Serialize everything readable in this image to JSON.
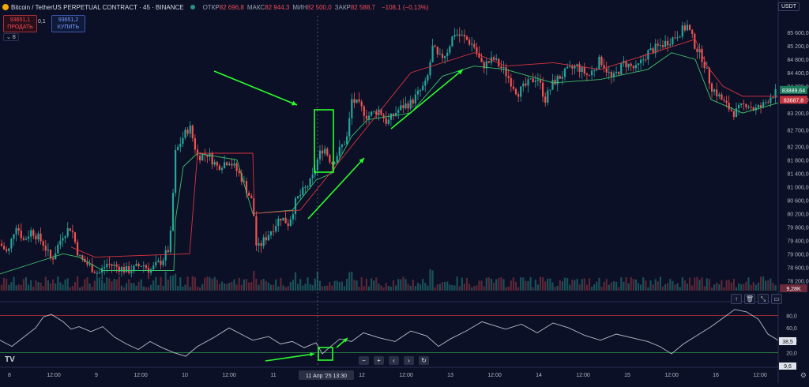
{
  "header": {
    "title": "Bitcoin / TetherUS PERPETUAL CONTRACT · 45 · BINANCE",
    "open_label": "ОТКР",
    "open_value": "82 696,8",
    "high_label": "МАКС",
    "high_value": "82 944,3",
    "low_label": "МИН",
    "low_value": "82 500,0",
    "close_label": "ЗАКР",
    "close_value": "82 588,7",
    "change": "−108,1 (−0,13%)"
  },
  "trade": {
    "sell_price": "93651,1",
    "sell_label": "ПРОДАТЬ",
    "buy_price": "93651,2",
    "buy_label": "КУПИТЬ",
    "spread": "0,1"
  },
  "collapse_label": "8",
  "currency": "USDT",
  "chart_data": [
    {
      "type": "candlestick",
      "title": "Bitcoin / TetherUS PERPETUAL CONTRACT · 45 · BINANCE",
      "ylim": [
        77900,
        86100
      ],
      "y_ticks": [
        78200,
        78600,
        79000,
        79400,
        79800,
        80200,
        80600,
        81000,
        81400,
        81800,
        82200,
        82700,
        83200,
        83600,
        84000,
        84400,
        84800,
        85200,
        85600
      ],
      "price_labels": {
        "current": "83889,64",
        "reference": "83687,8"
      },
      "x_labels": [
        "8",
        "12:00",
        "9",
        "12:00",
        "10",
        "12:00",
        "11",
        "12:00",
        "12",
        "12:00",
        "13",
        "12:00",
        "14",
        "12:00",
        "15",
        "12:00",
        "16",
        "12:00"
      ],
      "crosshair_label": "11 Апр '25   13:30",
      "close_path": [
        [
          0,
          79300
        ],
        [
          10,
          79000
        ],
        [
          20,
          79900
        ],
        [
          30,
          79400
        ],
        [
          40,
          79700
        ],
        [
          55,
          79300
        ],
        [
          65,
          78800
        ],
        [
          80,
          79600
        ],
        [
          90,
          79800
        ],
        [
          100,
          78900
        ],
        [
          115,
          78600
        ],
        [
          125,
          78400
        ],
        [
          135,
          78700
        ],
        [
          150,
          78600
        ],
        [
          160,
          78500
        ],
        [
          170,
          78550
        ],
        [
          180,
          78700
        ],
        [
          190,
          78500
        ],
        [
          205,
          78800
        ],
        [
          215,
          79200
        ],
        [
          222,
          82000
        ],
        [
          232,
          82500
        ],
        [
          240,
          82800
        ],
        [
          250,
          81900
        ],
        [
          262,
          82000
        ],
        [
          275,
          81600
        ],
        [
          290,
          81800
        ],
        [
          305,
          81300
        ],
        [
          320,
          80500
        ],
        [
          325,
          79100
        ],
        [
          340,
          79600
        ],
        [
          355,
          80100
        ],
        [
          365,
          79900
        ],
        [
          375,
          80600
        ],
        [
          385,
          80900
        ],
        [
          395,
          81200
        ],
        [
          403,
          81900
        ],
        [
          410,
          82200
        ],
        [
          420,
          81700
        ],
        [
          430,
          82100
        ],
        [
          440,
          82500
        ],
        [
          445,
          83600
        ],
        [
          455,
          83400
        ],
        [
          465,
          83100
        ],
        [
          480,
          83300
        ],
        [
          490,
          82900
        ],
        [
          500,
          83200
        ],
        [
          510,
          83400
        ],
        [
          520,
          83500
        ],
        [
          530,
          83800
        ],
        [
          540,
          84100
        ],
        [
          548,
          85200
        ],
        [
          555,
          84800
        ],
        [
          565,
          85000
        ],
        [
          575,
          85600
        ],
        [
          590,
          85400
        ],
        [
          600,
          85200
        ],
        [
          610,
          84600
        ],
        [
          625,
          84800
        ],
        [
          640,
          84400
        ],
        [
          655,
          83800
        ],
        [
          665,
          84000
        ],
        [
          680,
          84300
        ],
        [
          690,
          83600
        ],
        [
          700,
          84100
        ],
        [
          715,
          84400
        ],
        [
          730,
          84600
        ],
        [
          745,
          84300
        ],
        [
          760,
          84800
        ],
        [
          775,
          84200
        ],
        [
          790,
          84700
        ],
        [
          805,
          84500
        ],
        [
          820,
          85000
        ],
        [
          835,
          85200
        ],
        [
          850,
          85400
        ],
        [
          860,
          85600
        ],
        [
          870,
          85800
        ],
        [
          880,
          85200
        ],
        [
          890,
          84800
        ],
        [
          900,
          84000
        ],
        [
          910,
          83700
        ],
        [
          920,
          83400
        ],
        [
          930,
          83200
        ],
        [
          945,
          83500
        ],
        [
          955,
          83300
        ],
        [
          965,
          83400
        ],
        [
          975,
          83700
        ],
        [
          985,
          83850
        ]
      ],
      "support_line": [
        [
          0,
          78400
        ],
        [
          40,
          78700
        ],
        [
          80,
          79000
        ],
        [
          100,
          78900
        ],
        [
          130,
          78500
        ],
        [
          220,
          78500
        ],
        [
          222,
          80000
        ],
        [
          232,
          81600
        ],
        [
          250,
          82000
        ],
        [
          300,
          81800
        ],
        [
          320,
          80200
        ],
        [
          370,
          80300
        ],
        [
          400,
          81200
        ],
        [
          420,
          81400
        ],
        [
          445,
          82500
        ],
        [
          465,
          83000
        ],
        [
          520,
          83200
        ],
        [
          560,
          84300
        ],
        [
          600,
          84600
        ],
        [
          640,
          84500
        ],
        [
          700,
          84100
        ],
        [
          760,
          84200
        ],
        [
          820,
          84500
        ],
        [
          850,
          85000
        ],
        [
          880,
          84800
        ],
        [
          900,
          83600
        ],
        [
          940,
          83200
        ],
        [
          985,
          83500
        ]
      ],
      "resistance_line": [
        [
          90,
          79200
        ],
        [
          120,
          78900
        ],
        [
          240,
          79000
        ],
        [
          250,
          82000
        ],
        [
          320,
          82000
        ],
        [
          322,
          80200
        ],
        [
          380,
          80300
        ],
        [
          520,
          84400
        ],
        [
          600,
          85000
        ],
        [
          640,
          84600
        ],
        [
          700,
          84700
        ],
        [
          760,
          84500
        ],
        [
          800,
          84800
        ],
        [
          880,
          85400
        ],
        [
          895,
          84600
        ],
        [
          915,
          84000
        ],
        [
          940,
          83700
        ],
        [
          985,
          83700
        ]
      ],
      "volume": {
        "baseline_label": "9,28K"
      }
    },
    {
      "type": "line",
      "ylim": [
        0,
        100
      ],
      "y_ticks": [
        20,
        40,
        60,
        80
      ],
      "levels": [
        20,
        80
      ],
      "current_value": "38,5",
      "lower_label": "9,6",
      "values": [
        [
          0,
          40
        ],
        [
          15,
          30
        ],
        [
          30,
          45
        ],
        [
          45,
          60
        ],
        [
          55,
          78
        ],
        [
          65,
          82
        ],
        [
          80,
          70
        ],
        [
          90,
          58
        ],
        [
          100,
          62
        ],
        [
          115,
          54
        ],
        [
          130,
          62
        ],
        [
          145,
          45
        ],
        [
          160,
          34
        ],
        [
          175,
          25
        ],
        [
          190,
          38
        ],
        [
          205,
          28
        ],
        [
          220,
          20
        ],
        [
          235,
          14
        ],
        [
          250,
          30
        ],
        [
          270,
          44
        ],
        [
          290,
          60
        ],
        [
          305,
          50
        ],
        [
          320,
          40
        ],
        [
          340,
          46
        ],
        [
          355,
          34
        ],
        [
          370,
          38
        ],
        [
          385,
          28
        ],
        [
          400,
          36
        ],
        [
          408,
          18
        ],
        [
          415,
          26
        ],
        [
          430,
          42
        ],
        [
          445,
          38
        ],
        [
          460,
          52
        ],
        [
          480,
          44
        ],
        [
          500,
          38
        ],
        [
          520,
          55
        ],
        [
          540,
          47
        ],
        [
          555,
          30
        ],
        [
          570,
          42
        ],
        [
          590,
          55
        ],
        [
          610,
          70
        ],
        [
          625,
          64
        ],
        [
          640,
          58
        ],
        [
          660,
          66
        ],
        [
          680,
          52
        ],
        [
          700,
          68
        ],
        [
          720,
          60
        ],
        [
          740,
          48
        ],
        [
          760,
          40
        ],
        [
          780,
          50
        ],
        [
          800,
          44
        ],
        [
          820,
          38
        ],
        [
          835,
          30
        ],
        [
          850,
          18
        ],
        [
          865,
          34
        ],
        [
          885,
          50
        ],
        [
          900,
          62
        ],
        [
          915,
          76
        ],
        [
          930,
          90
        ],
        [
          945,
          86
        ],
        [
          960,
          74
        ],
        [
          972,
          50
        ],
        [
          985,
          40
        ]
      ]
    }
  ]
}
